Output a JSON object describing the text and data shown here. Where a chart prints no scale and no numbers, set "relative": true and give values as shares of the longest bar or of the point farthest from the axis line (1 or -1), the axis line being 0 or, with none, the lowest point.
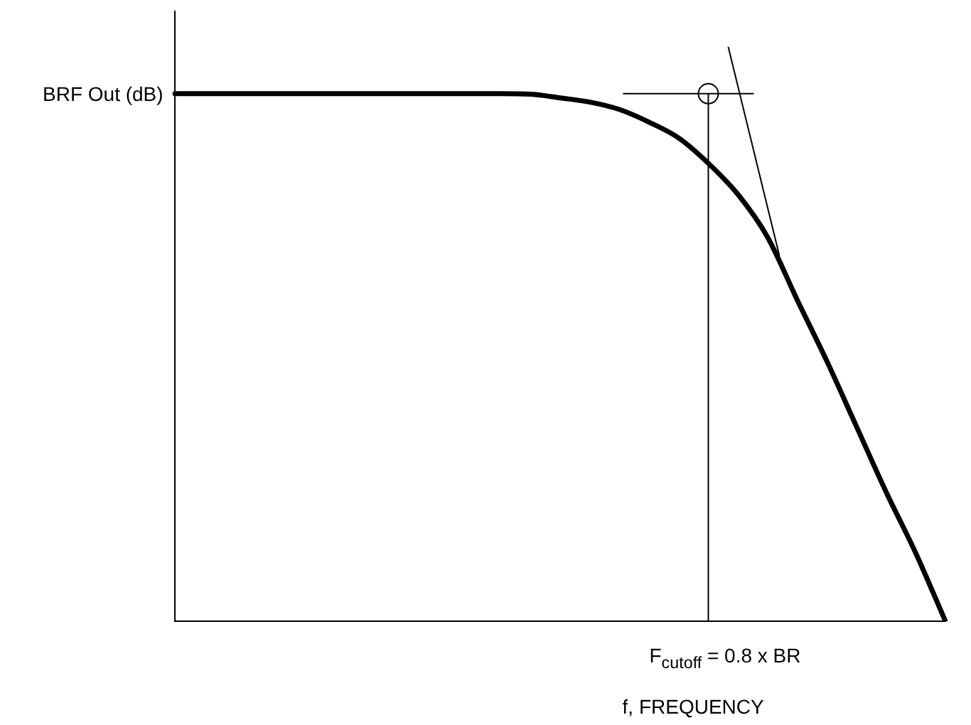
{
  "chart_data": {
    "type": "line",
    "relative": true,
    "ylabel": "BRF Out (dB)",
    "xlabel": "f, FREQUENCY",
    "categories": [
      null,
      null,
      null,
      null,
      null,
      null,
      null,
      null,
      null,
      null,
      null,
      null,
      null,
      null,
      null,
      null,
      null,
      null,
      null,
      null,
      null,
      null,
      null,
      null,
      null,
      null,
      null
    ],
    "series": [
      {
        "color": "#000000",
        "values": [
          1,
          1,
          1,
          1,
          1,
          1,
          1,
          1,
          1,
          1,
          1,
          1,
          0.999,
          0.992,
          0.984,
          0.97,
          0.946,
          0.916,
          0.868,
          0.809,
          0.728,
          0.609,
          0.493,
          0.369,
          0.245,
          0.129,
          0
        ]
      }
    ],
    "annotations": [
      "F$_{cutoff}$ = 0.8 x BR"
    ],
    "grid": false,
    "legend": false,
    "marker": "none",
    "line_style": "solid"
  }
}
